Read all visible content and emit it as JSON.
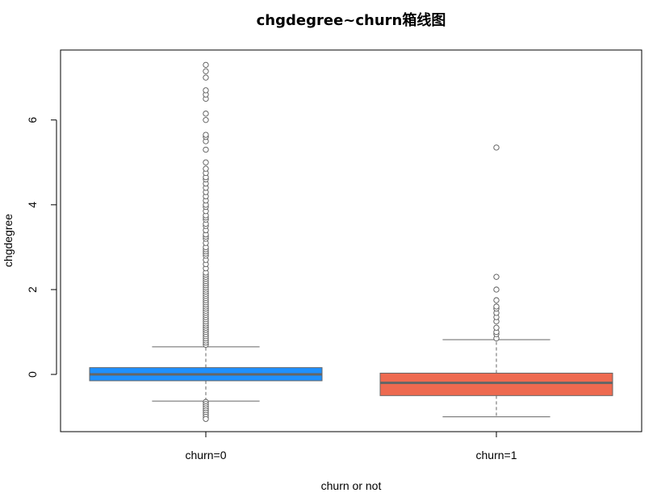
{
  "chart_data": {
    "type": "box",
    "title": "chgdegree~churn箱线图",
    "xlabel": "churn or not",
    "ylabel": "chgdegree",
    "ylim": [
      -1.35,
      7.65
    ],
    "yticks": [
      0,
      2,
      4,
      6
    ],
    "grid": false,
    "legend": "none",
    "series": [
      {
        "category": "churn=0",
        "color": "#1E90FF",
        "min": -0.63,
        "q1": -0.15,
        "median": 0.0,
        "q3": 0.16,
        "max": 0.65,
        "outliers": [
          0.7,
          0.75,
          0.8,
          0.85,
          0.9,
          0.95,
          1.0,
          1.05,
          1.1,
          1.15,
          1.2,
          1.25,
          1.3,
          1.35,
          1.4,
          1.45,
          1.5,
          1.55,
          1.6,
          1.65,
          1.7,
          1.75,
          1.8,
          1.85,
          1.9,
          1.95,
          2.0,
          2.05,
          2.1,
          2.15,
          2.2,
          2.25,
          2.3,
          2.35,
          2.4,
          2.5,
          2.6,
          2.7,
          2.8,
          2.85,
          2.9,
          2.95,
          3.0,
          3.1,
          3.2,
          3.25,
          3.3,
          3.4,
          3.5,
          3.55,
          3.65,
          3.7,
          3.75,
          3.85,
          3.95,
          4.0,
          4.1,
          4.2,
          4.3,
          4.4,
          4.5,
          4.6,
          4.65,
          4.75,
          4.85,
          5.0,
          5.3,
          5.5,
          5.6,
          5.65,
          6.0,
          6.15,
          6.5,
          6.6,
          6.7,
          7.0,
          7.15,
          7.3,
          -0.65,
          -0.7,
          -0.75,
          -0.8,
          -0.85,
          -0.9,
          -0.95,
          -1.0,
          -1.05
        ]
      },
      {
        "category": "churn=1",
        "color": "#EE6A50",
        "min": -1.0,
        "q1": -0.5,
        "median": -0.2,
        "q3": 0.03,
        "max": 0.82,
        "outliers": [
          0.85,
          0.95,
          1.0,
          1.1,
          1.25,
          1.35,
          1.45,
          1.55,
          1.6,
          1.75,
          2.0,
          2.3,
          5.35
        ]
      }
    ]
  }
}
